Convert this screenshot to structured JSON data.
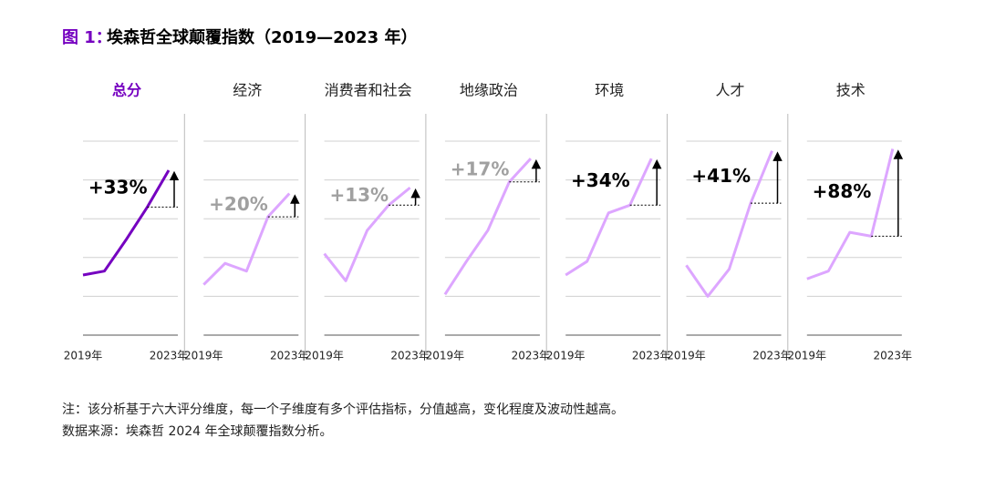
{
  "figure_label": "图 1：",
  "title": "埃森哲全球颠覆指数（2019—2023 年）",
  "notes": [
    "注：该分析基于六大评分维度，每一个子维度有多个评估指标，分值越高，变化程度及波动性越高。",
    "数据来源：埃森哲 2024 年全球颠覆指数分析。"
  ],
  "chart_data": [
    {
      "type": "line",
      "title": "总分",
      "categories": [
        "2019年",
        null,
        null,
        null,
        "2023年"
      ],
      "values": [
        31,
        33,
        49,
        66,
        85
      ],
      "color": "#7500c0",
      "annotation": "+33%",
      "annotation_color": "#000000",
      "ylim": [
        0,
        100
      ],
      "yticks": [
        0,
        20,
        40,
        60,
        80,
        100
      ],
      "grid": true
    },
    {
      "type": "line",
      "title": "经济",
      "categories": [
        "2019年",
        null,
        null,
        null,
        "2023年"
      ],
      "values": [
        26,
        37,
        33,
        61,
        73
      ],
      "color": "#dda6ff",
      "annotation": "+20%",
      "annotation_color": "#a0a0a0",
      "ylim": [
        0,
        100
      ],
      "yticks": [
        0,
        20,
        40,
        60,
        80,
        100
      ],
      "grid": true
    },
    {
      "type": "line",
      "title": "消费者和社会",
      "categories": [
        "2019年",
        null,
        null,
        null,
        "2023年"
      ],
      "values": [
        42,
        28,
        54,
        67,
        76
      ],
      "color": "#dda6ff",
      "annotation": "+13%",
      "annotation_color": "#a0a0a0",
      "ylim": [
        0,
        100
      ],
      "yticks": [
        0,
        20,
        40,
        60,
        80,
        100
      ],
      "grid": true
    },
    {
      "type": "line",
      "title": "地缘政治",
      "categories": [
        "2019年",
        null,
        null,
        null,
        "2023年"
      ],
      "values": [
        21,
        38,
        54,
        79,
        91
      ],
      "color": "#dda6ff",
      "annotation": "+17%",
      "annotation_color": "#a0a0a0",
      "ylim": [
        0,
        100
      ],
      "yticks": [
        0,
        20,
        40,
        60,
        80,
        100
      ],
      "grid": true
    },
    {
      "type": "line",
      "title": "环境",
      "categories": [
        "2019年",
        null,
        null,
        null,
        "2023年"
      ],
      "values": [
        31,
        38,
        63,
        67,
        91
      ],
      "color": "#dda6ff",
      "annotation": "+34%",
      "annotation_color": "#000000",
      "ylim": [
        0,
        100
      ],
      "yticks": [
        0,
        20,
        40,
        60,
        80,
        100
      ],
      "grid": true
    },
    {
      "type": "line",
      "title": "人才",
      "categories": [
        "2019年",
        null,
        null,
        null,
        "2023年"
      ],
      "values": [
        36,
        20,
        34,
        68,
        95
      ],
      "color": "#dda6ff",
      "annotation": "+41%",
      "annotation_color": "#000000",
      "ylim": [
        0,
        100
      ],
      "yticks": [
        0,
        20,
        40,
        60,
        80,
        100
      ],
      "grid": true
    },
    {
      "type": "line",
      "title": "技术",
      "categories": [
        "2019年",
        null,
        null,
        null,
        "2023年"
      ],
      "values": [
        29,
        33,
        53,
        51,
        96
      ],
      "color": "#dda6ff",
      "annotation": "+88%",
      "annotation_color": "#000000",
      "ylim": [
        0,
        100
      ],
      "yticks": [
        0,
        20,
        40,
        60,
        80,
        100
      ],
      "grid": true
    }
  ]
}
